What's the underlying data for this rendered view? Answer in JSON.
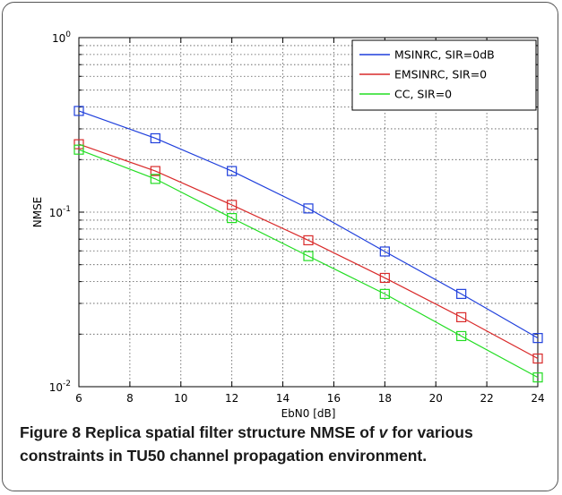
{
  "chart_data": {
    "type": "line",
    "xlabel": "EbN0 [dB]",
    "ylabel": "NMSE",
    "xlim": [
      6,
      24
    ],
    "ylim": [
      0.01,
      1
    ],
    "yscale": "log",
    "x_ticks": [
      6,
      8,
      10,
      12,
      14,
      16,
      18,
      20,
      22,
      24
    ],
    "x_tick_labels": [
      "6",
      "8",
      "10",
      "12",
      "14",
      "16",
      "18",
      "20",
      "22",
      "24"
    ],
    "y_tick_labels": [
      {
        "base": "10",
        "exp": "-2",
        "value": 0.01
      },
      {
        "base": "10",
        "exp": "-1",
        "value": 0.1
      },
      {
        "base": "10",
        "exp": "0",
        "value": 1
      }
    ],
    "grid": true,
    "legend_position": "top-right",
    "x": [
      6,
      9,
      12,
      15,
      18,
      21,
      24
    ],
    "series": [
      {
        "name": "MSINRC, SIR=0dB",
        "color": "#1f3fdc",
        "marker": "square",
        "values": [
          0.38,
          0.265,
          0.172,
          0.105,
          0.0595,
          0.034,
          0.019
        ]
      },
      {
        "name": "EMSINRC, SIR=0",
        "color": "#d92a2a",
        "marker": "square",
        "values": [
          0.245,
          0.172,
          0.11,
          0.069,
          0.042,
          0.025,
          0.0145
        ]
      },
      {
        "name": "CC, SIR=0",
        "color": "#22dd22",
        "marker": "square",
        "values": [
          0.228,
          0.155,
          0.0925,
          0.056,
          0.034,
          0.0195,
          0.0113
        ]
      }
    ]
  },
  "caption": {
    "label": "Figure 8",
    "text_before": " Replica spatial filter structure NMSE of ",
    "variable": "v",
    "text_after": " for various constraints in TU50 channel propagation environment."
  }
}
